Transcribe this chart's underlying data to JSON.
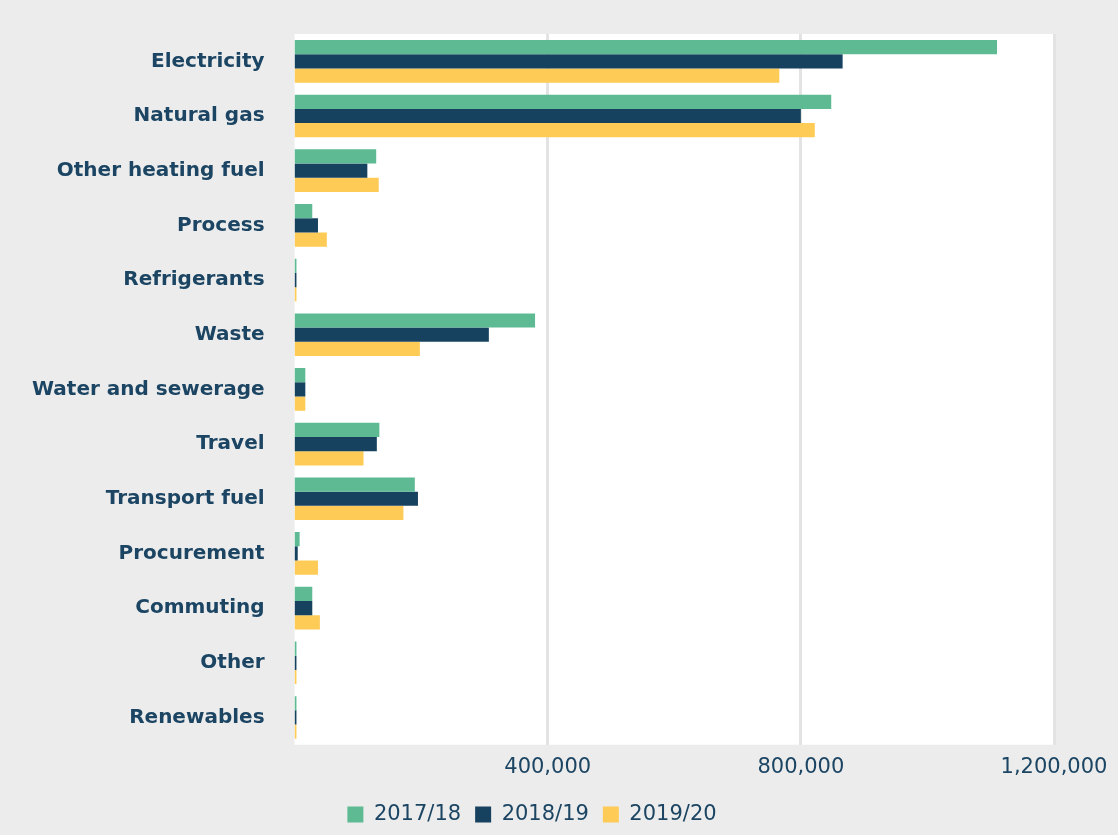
{
  "chart_data": {
    "type": "bar",
    "orientation": "horizontal",
    "categories": [
      "Electricity",
      "Natural gas",
      "Other heating fuel",
      "Process",
      "Refrigerants",
      "Waste",
      "Water and sewerage",
      "Travel",
      "Transport fuel",
      "Procurement",
      "Commuting",
      "Other",
      "Renewables"
    ],
    "series": [
      {
        "name": "2017/18",
        "color": "#5dba93",
        "values": [
          1110000,
          848000,
          129000,
          28000,
          3000,
          380000,
          17000,
          134000,
          190000,
          8000,
          28000,
          3000,
          3000
        ]
      },
      {
        "name": "2018/19",
        "color": "#16425f",
        "values": [
          866000,
          800000,
          115000,
          37000,
          3000,
          307000,
          17000,
          130000,
          195000,
          5000,
          28000,
          3000,
          3000
        ]
      },
      {
        "name": "2019/20",
        "color": "#fecb57",
        "values": [
          766000,
          822000,
          133000,
          51000,
          3000,
          198000,
          17000,
          109000,
          172000,
          37000,
          40000,
          3000,
          3000
        ]
      }
    ],
    "xlim": [
      0,
      1200000
    ],
    "xticks": [
      {
        "value": 400000,
        "label": "400,000"
      },
      {
        "value": 800000,
        "label": "800,000"
      },
      {
        "value": 1200000,
        "label": "1,200,000"
      }
    ],
    "grid": "x",
    "legend": "bottom"
  }
}
